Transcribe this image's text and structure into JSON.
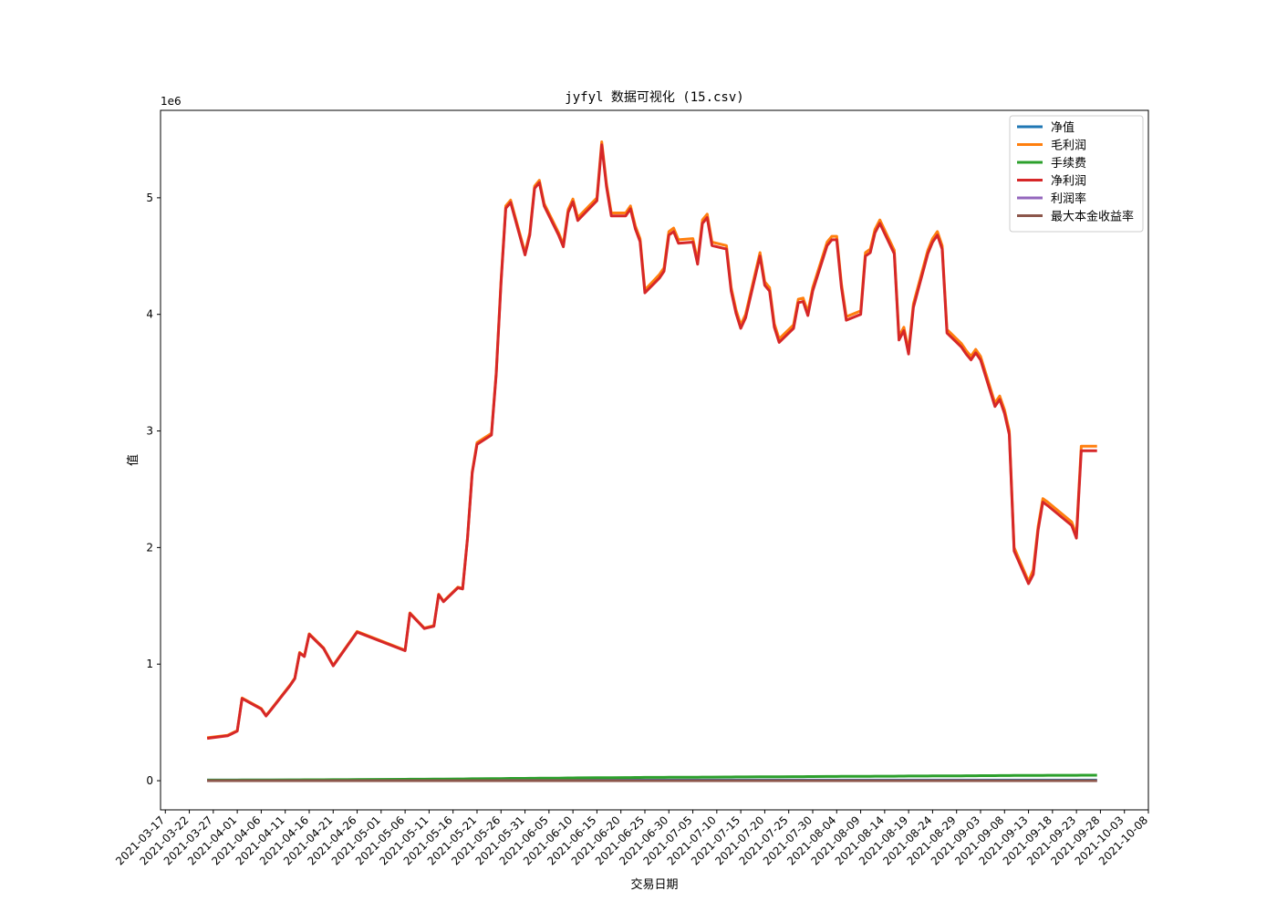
{
  "chart_data": {
    "type": "line",
    "title": "jyfyl 数据可视化 (15.csv)",
    "xlabel": "交易日期",
    "ylabel": "值",
    "y_offset_text": "1e6",
    "xlim": [
      "2021-03-16",
      "2021-10-08"
    ],
    "ylim": [
      -250000,
      5750000
    ],
    "yticks": [
      0,
      1000000,
      2000000,
      3000000,
      4000000,
      5000000
    ],
    "ytick_labels": [
      "0",
      "1",
      "2",
      "3",
      "4",
      "5"
    ],
    "xtick_labels": [
      "2021-03-17",
      "2021-03-22",
      "2021-03-27",
      "2021-04-01",
      "2021-04-06",
      "2021-04-11",
      "2021-04-16",
      "2021-04-21",
      "2021-04-26",
      "2021-05-01",
      "2021-05-06",
      "2021-05-11",
      "2021-05-16",
      "2021-05-21",
      "2021-05-26",
      "2021-05-31",
      "2021-06-05",
      "2021-06-10",
      "2021-06-15",
      "2021-06-20",
      "2021-06-25",
      "2021-06-30",
      "2021-07-05",
      "2021-07-10",
      "2021-07-15",
      "2021-07-20",
      "2021-07-25",
      "2021-07-30",
      "2021-08-04",
      "2021-08-09",
      "2021-08-14",
      "2021-08-19",
      "2021-08-24",
      "2021-08-29",
      "2021-09-03",
      "2021-09-08",
      "2021-09-13",
      "2021-09-18",
      "2021-09-23",
      "2021-09-28",
      "2021-10-03",
      "2021-10-08"
    ],
    "legend": "upper right",
    "grid": false,
    "x": [
      "2021-03-26",
      "2021-03-30",
      "2021-04-01",
      "2021-04-02",
      "2021-04-06",
      "2021-04-07",
      "2021-04-08",
      "2021-04-12",
      "2021-04-13",
      "2021-04-14",
      "2021-04-15",
      "2021-04-16",
      "2021-04-19",
      "2021-04-21",
      "2021-04-26",
      "2021-05-06",
      "2021-05-07",
      "2021-05-10",
      "2021-05-12",
      "2021-05-13",
      "2021-05-14",
      "2021-05-17",
      "2021-05-18",
      "2021-05-19",
      "2021-05-20",
      "2021-05-21",
      "2021-05-24",
      "2021-05-25",
      "2021-05-26",
      "2021-05-27",
      "2021-05-28",
      "2021-05-31",
      "2021-06-01",
      "2021-06-02",
      "2021-06-03",
      "2021-06-04",
      "2021-06-07",
      "2021-06-08",
      "2021-06-09",
      "2021-06-10",
      "2021-06-11",
      "2021-06-15",
      "2021-06-16",
      "2021-06-17",
      "2021-06-18",
      "2021-06-21",
      "2021-06-22",
      "2021-06-23",
      "2021-06-24",
      "2021-06-25",
      "2021-06-28",
      "2021-06-29",
      "2021-06-30",
      "2021-07-01",
      "2021-07-02",
      "2021-07-05",
      "2021-07-06",
      "2021-07-07",
      "2021-07-08",
      "2021-07-09",
      "2021-07-12",
      "2021-07-13",
      "2021-07-14",
      "2021-07-15",
      "2021-07-16",
      "2021-07-19",
      "2021-07-20",
      "2021-07-21",
      "2021-07-22",
      "2021-07-23",
      "2021-07-26",
      "2021-07-27",
      "2021-07-28",
      "2021-07-29",
      "2021-07-30",
      "2021-08-02",
      "2021-08-03",
      "2021-08-04",
      "2021-08-05",
      "2021-08-06",
      "2021-08-09",
      "2021-08-10",
      "2021-08-11",
      "2021-08-12",
      "2021-08-13",
      "2021-08-16",
      "2021-08-17",
      "2021-08-18",
      "2021-08-19",
      "2021-08-20",
      "2021-08-23",
      "2021-08-24",
      "2021-08-25",
      "2021-08-26",
      "2021-08-27",
      "2021-08-30",
      "2021-08-31",
      "2021-09-01",
      "2021-09-02",
      "2021-09-03",
      "2021-09-06",
      "2021-09-07",
      "2021-09-08",
      "2021-09-09",
      "2021-09-10",
      "2021-09-13",
      "2021-09-14",
      "2021-09-15",
      "2021-09-16",
      "2021-09-17",
      "2021-09-22",
      "2021-09-23",
      "2021-09-24",
      "2021-09-27"
    ],
    "series": [
      {
        "name": "净值",
        "color": "#1f77b4",
        "values": [
          5000,
          5000,
          5000,
          5000,
          5000,
          5000,
          5000,
          5000,
          5000,
          5000,
          5000,
          5000,
          5000,
          5000,
          5000,
          5000,
          5000,
          5000,
          5000,
          5000,
          5000,
          5000,
          5000,
          5000,
          5000,
          5000,
          5000,
          5000,
          5000,
          5000,
          5000,
          5000,
          5000,
          5000,
          5000,
          5000,
          5000,
          5000,
          5000,
          5000,
          5000,
          5000,
          5000,
          5000,
          5000,
          5000,
          5000,
          5000,
          5000,
          5000,
          5000,
          5000,
          5000,
          5000,
          5000,
          5000,
          5000,
          5000,
          5000,
          5000,
          5000,
          5000,
          5000,
          5000,
          5000,
          5000,
          5000,
          5000,
          5000,
          5000,
          5000,
          5000,
          5000,
          5000,
          5000,
          5000,
          5000,
          5000,
          5000,
          5000,
          5000,
          5000,
          5000,
          5000,
          5000,
          5000,
          5000,
          5000,
          5000,
          5000,
          5000,
          5000,
          5000,
          5000,
          5000,
          5000,
          5000,
          5000,
          5000,
          5000,
          5000,
          5000,
          5000,
          5000,
          5000,
          5000,
          5000,
          5000,
          5000,
          5000,
          5000,
          5000,
          5000,
          5000
        ]
      },
      {
        "name": "毛利润",
        "color": "#ff7f0e",
        "values": [
          370000,
          390000,
          430000,
          710000,
          620000,
          560000,
          610000,
          820000,
          880000,
          1100000,
          1070000,
          1260000,
          1140000,
          990000,
          1280000,
          1120000,
          1440000,
          1310000,
          1330000,
          1600000,
          1540000,
          1660000,
          1650000,
          2080000,
          2650000,
          2900000,
          2980000,
          3500000,
          4290000,
          4930000,
          4980000,
          4530000,
          4700000,
          5100000,
          5150000,
          4950000,
          4700000,
          4600000,
          4900000,
          4990000,
          4830000,
          5000000,
          5480000,
          5120000,
          4870000,
          4870000,
          4930000,
          4760000,
          4650000,
          4210000,
          4340000,
          4400000,
          4710000,
          4740000,
          4640000,
          4650000,
          4460000,
          4810000,
          4860000,
          4620000,
          4590000,
          4230000,
          4040000,
          3910000,
          4000000,
          4530000,
          4280000,
          4230000,
          3920000,
          3790000,
          3910000,
          4130000,
          4140000,
          4020000,
          4230000,
          4620000,
          4670000,
          4670000,
          4260000,
          3980000,
          4030000,
          4530000,
          4560000,
          4730000,
          4810000,
          4550000,
          3810000,
          3890000,
          3690000,
          4090000,
          4550000,
          4650000,
          4710000,
          4590000,
          3870000,
          3750000,
          3690000,
          3640000,
          3700000,
          3640000,
          3240000,
          3300000,
          3180000,
          3000000,
          2000000,
          1710000,
          1810000,
          2180000,
          2420000,
          2390000,
          2220000,
          2110000,
          2870000,
          2870000
        ]
      },
      {
        "name": "手续费",
        "color": "#2ca02c",
        "values": [
          5000,
          5200,
          5400,
          5500,
          6000,
          6200,
          6400,
          7000,
          7200,
          7500,
          7800,
          8000,
          8400,
          9000,
          10000,
          12000,
          12500,
          13000,
          13500,
          14000,
          14200,
          15000,
          15500,
          16000,
          16500,
          17000,
          17500,
          18000,
          18500,
          19000,
          19500,
          20000,
          20500,
          21000,
          21500,
          22000,
          22500,
          23000,
          23500,
          24000,
          24500,
          25000,
          25500,
          26000,
          26500,
          27000,
          27300,
          27600,
          27900,
          28200,
          28500,
          28800,
          29100,
          29400,
          29700,
          30000,
          30300,
          30600,
          30900,
          31200,
          31500,
          31800,
          32100,
          32400,
          32700,
          33000,
          33300,
          33600,
          33900,
          34200,
          34500,
          34800,
          35100,
          35400,
          35700,
          36000,
          36300,
          36600,
          36900,
          37200,
          37500,
          37800,
          38100,
          38400,
          38700,
          39000,
          39300,
          39600,
          39900,
          40200,
          40500,
          40800,
          41100,
          41400,
          41700,
          42000,
          42300,
          42600,
          42900,
          43200,
          43500,
          43800,
          44100,
          44400,
          44700,
          45000,
          45300,
          45600,
          45900,
          46200,
          46500,
          46800,
          47100,
          47400
        ]
      },
      {
        "name": "净利润",
        "color": "#d62728",
        "values": [
          365000,
          385000,
          425000,
          705000,
          615000,
          555000,
          605000,
          815000,
          875000,
          1095000,
          1065000,
          1255000,
          1135000,
          985000,
          1275000,
          1115000,
          1435000,
          1305000,
          1325000,
          1595000,
          1535000,
          1655000,
          1645000,
          2075000,
          2640000,
          2885000,
          2965000,
          3485000,
          4270000,
          4910000,
          4960000,
          4510000,
          4680000,
          5080000,
          5130000,
          4930000,
          4680000,
          4580000,
          4875000,
          4965000,
          4805000,
          4975000,
          5455000,
          5095000,
          4845000,
          4845000,
          4905000,
          4735000,
          4625000,
          4185000,
          4310000,
          4370000,
          4680000,
          4710000,
          4610000,
          4620000,
          4430000,
          4780000,
          4830000,
          4590000,
          4560000,
          4200000,
          4010000,
          3880000,
          3970000,
          4500000,
          4250000,
          4200000,
          3890000,
          3760000,
          3880000,
          4100000,
          4110000,
          3990000,
          4200000,
          4590000,
          4640000,
          4640000,
          4230000,
          3950000,
          4000000,
          4500000,
          4530000,
          4700000,
          4780000,
          4520000,
          3780000,
          3860000,
          3660000,
          4060000,
          4520000,
          4620000,
          4680000,
          4560000,
          3840000,
          3720000,
          3660000,
          3610000,
          3670000,
          3610000,
          3210000,
          3270000,
          3150000,
          2970000,
          1970000,
          1690000,
          1770000,
          2150000,
          2390000,
          2360000,
          2190000,
          2080000,
          2830000,
          2830000
        ]
      },
      {
        "name": "利润率",
        "color": "#9467bd",
        "values": [
          70,
          75,
          80,
          140,
          120,
          110,
          120,
          160,
          170,
          220,
          210,
          250,
          225,
          195,
          255,
          220,
          285,
          260,
          265,
          320,
          305,
          330,
          330,
          415,
          530,
          580,
          595,
          700,
          855,
          985,
          995,
          905,
          940,
          1020,
          1030,
          990,
          940,
          920,
          975,
          995,
          965,
          995,
          1090,
          1020,
          970,
          970,
          980,
          945,
          925,
          840,
          865,
          875,
          935,
          940,
          920,
          925,
          885,
          955,
          965,
          920,
          915,
          845,
          805,
          775,
          795,
          900,
          850,
          840,
          780,
          755,
          775,
          820,
          820,
          800,
          840,
          920,
          930,
          930,
          845,
          790,
          800,
          900,
          905,
          940,
          955,
          905,
          755,
          770,
          730,
          810,
          905,
          925,
          935,
          910,
          765,
          745,
          730,
          720,
          735,
          720,
          640,
          655,
          630,
          595,
          395,
          340,
          355,
          430,
          480,
          470,
          440,
          415,
          565,
          565
        ]
      },
      {
        "name": "最大本金收益率",
        "color": "#8c564b",
        "values": [
          0,
          0,
          0,
          0,
          0,
          0,
          0,
          0,
          0,
          0,
          0,
          0,
          0,
          0,
          0,
          0,
          0,
          0,
          0,
          0,
          0,
          0,
          0,
          0,
          0,
          0,
          0,
          0,
          0,
          0,
          0,
          0,
          0,
          0,
          0,
          0,
          0,
          0,
          0,
          0,
          0,
          0,
          0,
          0,
          0,
          0,
          0,
          0,
          0,
          0,
          0,
          0,
          0,
          0,
          0,
          0,
          0,
          0,
          0,
          0,
          0,
          0,
          0,
          0,
          0,
          0,
          0,
          0,
          0,
          0,
          0,
          0,
          0,
          0,
          0,
          0,
          0,
          0,
          0,
          0,
          0,
          0,
          0,
          0,
          0,
          0,
          0,
          0,
          0,
          0,
          0,
          0,
          0,
          0,
          0,
          0,
          0,
          0,
          0,
          0,
          0,
          0,
          0,
          0,
          0,
          0,
          0,
          0,
          0,
          0,
          0,
          0,
          0,
          0
        ]
      }
    ]
  }
}
